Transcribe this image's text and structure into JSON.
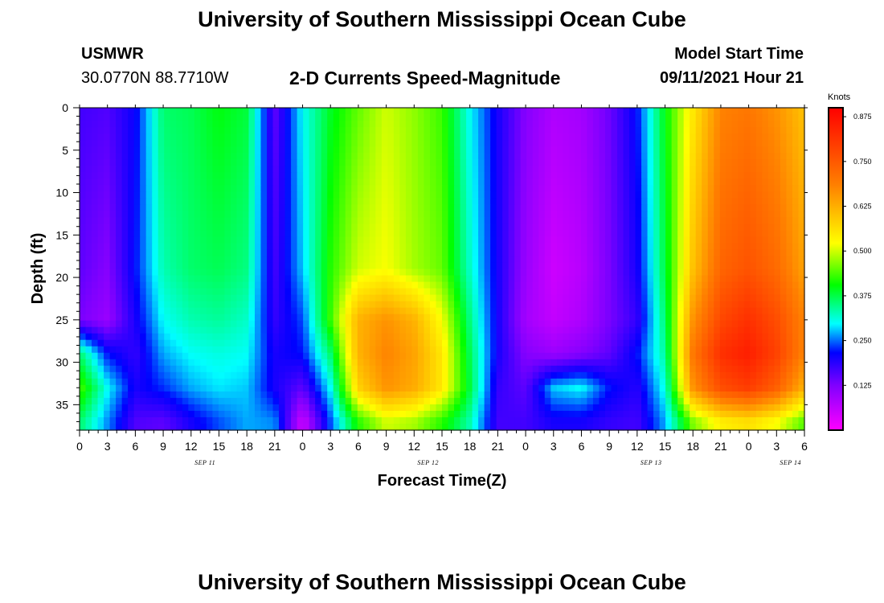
{
  "page": {
    "title_top": "University of Southern Mississippi Ocean Cube",
    "title_bottom": "University of Southern Mississippi Ocean Cube",
    "station": "USMWR",
    "location": "30.0770N  88.7710W",
    "subtitle": "2-D Currents Speed-Magnitude",
    "model_start_label": "Model Start Time",
    "model_start_value": "09/11/2021 Hour 21"
  },
  "chart_data": {
    "type": "heatmap",
    "title": "2-D Currents Speed-Magnitude",
    "xlabel": "Forecast Time(Z)",
    "ylabel": "Depth (ft)",
    "x_tick_labels": [
      "0",
      "3",
      "6",
      "9",
      "12",
      "15",
      "18",
      "21",
      "0",
      "3",
      "6",
      "9",
      "12",
      "15",
      "18",
      "21",
      "0",
      "3",
      "6",
      "9",
      "12",
      "15",
      "18",
      "21",
      "0",
      "3",
      "6"
    ],
    "x_date_labels": [
      {
        "label": "SEP 11",
        "tick_index": 4.5
      },
      {
        "label": "SEP 12",
        "tick_index": 12.5
      },
      {
        "label": "SEP 13",
        "tick_index": 20.5
      },
      {
        "label": "SEP 14",
        "tick_index": 25.5
      }
    ],
    "xlim_hours": [
      0,
      78
    ],
    "y_tick_values": [
      0,
      5,
      10,
      15,
      20,
      25,
      30,
      35
    ],
    "ylim_ft": [
      0,
      38
    ],
    "y_inverted": true,
    "colorbar": {
      "unit": "Knots",
      "vmin": 0.0,
      "vmax": 0.9,
      "tick_values": [
        0.125,
        0.25,
        0.375,
        0.5,
        0.625,
        0.75,
        0.875
      ],
      "tick_labels": [
        "0.125",
        "0.250",
        "0.375",
        "0.500",
        "0.625",
        "0.750",
        "0.875"
      ],
      "colors": [
        "#ff00ff",
        "#7f00ff",
        "#0000ff",
        "#00ffff",
        "#00ff00",
        "#ffff00",
        "#ff8000",
        "#ff0000"
      ]
    },
    "depth_levels_ft": [
      0,
      19,
      25,
      29,
      33,
      37
    ],
    "time_hours": [
      0,
      3,
      6,
      9,
      12,
      15,
      18,
      21,
      24,
      27,
      30,
      33,
      36,
      39,
      42,
      45,
      48,
      51,
      54,
      57,
      60,
      63,
      66,
      69,
      72,
      75,
      78
    ],
    "values_knots": [
      [
        0.17,
        0.16,
        0.21,
        0.36,
        0.37,
        0.4,
        0.38,
        0.15,
        0.3,
        0.39,
        0.45,
        0.5,
        0.47,
        0.43,
        0.3,
        0.2,
        0.12,
        0.08,
        0.09,
        0.14,
        0.22,
        0.4,
        0.55,
        0.68,
        0.7,
        0.66,
        0.6
      ],
      [
        0.15,
        0.12,
        0.22,
        0.33,
        0.36,
        0.37,
        0.35,
        0.17,
        0.28,
        0.42,
        0.5,
        0.52,
        0.48,
        0.45,
        0.32,
        0.2,
        0.1,
        0.05,
        0.07,
        0.13,
        0.2,
        0.38,
        0.6,
        0.73,
        0.76,
        0.72,
        0.64
      ],
      [
        0.13,
        0.1,
        0.2,
        0.3,
        0.33,
        0.34,
        0.32,
        0.18,
        0.24,
        0.43,
        0.62,
        0.66,
        0.62,
        0.52,
        0.35,
        0.2,
        0.09,
        0.06,
        0.08,
        0.13,
        0.18,
        0.36,
        0.66,
        0.78,
        0.82,
        0.77,
        0.68
      ],
      [
        0.36,
        0.22,
        0.18,
        0.27,
        0.3,
        0.31,
        0.3,
        0.2,
        0.22,
        0.36,
        0.62,
        0.68,
        0.64,
        0.55,
        0.37,
        0.2,
        0.12,
        0.1,
        0.12,
        0.15,
        0.22,
        0.34,
        0.7,
        0.82,
        0.85,
        0.79,
        0.68
      ],
      [
        0.44,
        0.3,
        0.2,
        0.23,
        0.27,
        0.29,
        0.28,
        0.2,
        0.15,
        0.3,
        0.58,
        0.66,
        0.63,
        0.55,
        0.38,
        0.18,
        0.15,
        0.28,
        0.3,
        0.22,
        0.19,
        0.31,
        0.66,
        0.77,
        0.8,
        0.74,
        0.62
      ],
      [
        0.36,
        0.26,
        0.16,
        0.15,
        0.2,
        0.24,
        0.27,
        0.26,
        0.05,
        0.24,
        0.42,
        0.5,
        0.48,
        0.42,
        0.33,
        0.17,
        0.17,
        0.2,
        0.2,
        0.18,
        0.17,
        0.27,
        0.46,
        0.54,
        0.56,
        0.52,
        0.44
      ]
    ]
  }
}
